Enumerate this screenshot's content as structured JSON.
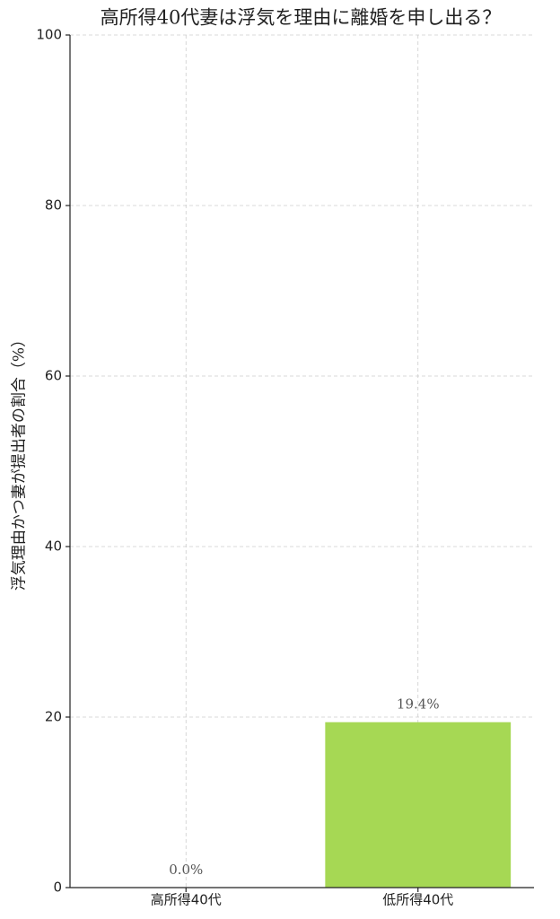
{
  "chart_data": {
    "type": "bar",
    "title": "高所得40代妻は浮気を理由に離婚を申し出る？",
    "y_label": "浮気理由かつ妻が提出者の割合（%）",
    "categories": [
      "高所得40代",
      "低所得40代"
    ],
    "values": [
      0.0,
      19.4
    ],
    "value_labels": [
      "0.0%",
      "19.4%"
    ],
    "color": "#a6d854",
    "ylim": [
      0,
      100
    ],
    "yticks": [
      0,
      20,
      40,
      60,
      80,
      100
    ],
    "grid": true
  }
}
